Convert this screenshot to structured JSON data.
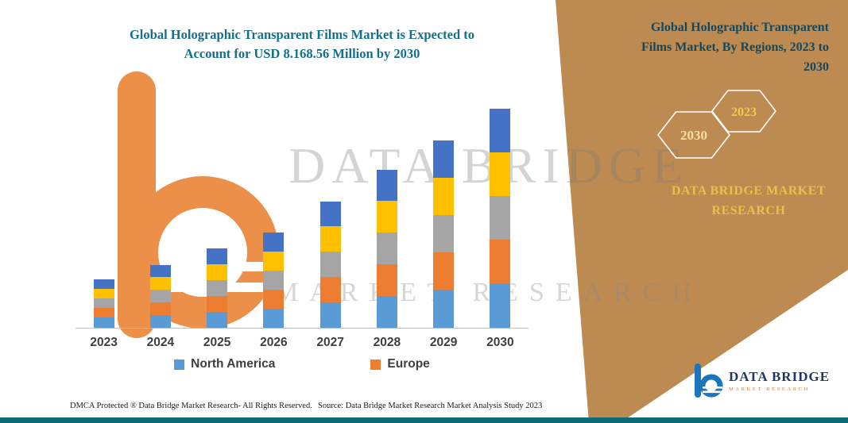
{
  "header": {
    "title_line1": "Global Holographic Transparent Films Market is Expected to",
    "title_line2": "Account for USD 8.168.56 Million by 2030",
    "title_color": "#146E8E"
  },
  "right_panel": {
    "heading_lines": [
      "Global Holographic Transparent",
      "Films Market, By Regions, 2023 to",
      "2030"
    ],
    "heading_color": "#16475A",
    "background_color": "#BD8A51",
    "hexagons": [
      {
        "label": "2030",
        "text_color": "#F6E09A"
      },
      {
        "label": "2023",
        "text_color": "#F2C94C"
      }
    ],
    "brand_line1": "DATA BRIDGE MARKET",
    "brand_line2": "RESEARCH",
    "brand_color": "#EDBE4A"
  },
  "chart_data": {
    "type": "bar",
    "stacked": true,
    "title": "Global Holographic Transparent Films Market is Expected to Account for USD 8.168.56 Million by 2030",
    "xlabel": "",
    "ylabel": "",
    "grid": false,
    "y_axis_labeled": false,
    "legend_position": "bottom",
    "value_units": "relative stacked height (axis unlabeled, values estimated from pixels)",
    "categories": [
      "2023",
      "2024",
      "2025",
      "2026",
      "2027",
      "2028",
      "2029",
      "2030"
    ],
    "series": [
      {
        "name": "North America",
        "color": "#5B9BD5",
        "values": [
          13,
          16,
          20,
          24,
          32,
          40,
          48,
          56
        ]
      },
      {
        "name": "Europe",
        "color": "#ED7D31",
        "values": [
          12,
          16,
          20,
          24,
          32,
          40,
          47,
          55
        ]
      },
      {
        "name": "",
        "color": "#A5A5A5",
        "values": [
          12,
          16,
          20,
          24,
          32,
          40,
          47,
          55
        ]
      },
      {
        "name": "",
        "color": "#FFC000",
        "values": [
          12,
          16,
          20,
          24,
          32,
          40,
          47,
          55
        ]
      },
      {
        "name": "",
        "color": "#4472C4",
        "values": [
          12,
          15,
          20,
          24,
          31,
          39,
          47,
          55
        ]
      }
    ],
    "legend": [
      {
        "label": "North America",
        "color": "#5B9BD5"
      },
      {
        "label": "Europe",
        "color": "#ED7D31"
      }
    ]
  },
  "watermark": {
    "line1": "DATA BRIDGE",
    "line2": "MARKET RESEARCH"
  },
  "footer": {
    "dmca": "DMCA Protected ® Data Bridge Market Research-  All Rights Reserved.",
    "source": "Source: Data Bridge Market Research  Market Analysis Study 2023",
    "strip_color": "#0F6A78"
  },
  "logo": {
    "title": "DATA BRIDGE",
    "subtitle": "MARKET RESEARCH",
    "icon": "data-bridge-b-icon",
    "title_color": "#1F3864",
    "subtitle_color": "#E87722",
    "icon_blue": "#1B75BC",
    "watermark_orange": "#E87722"
  }
}
